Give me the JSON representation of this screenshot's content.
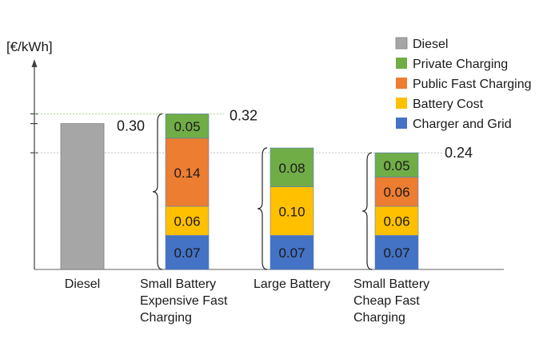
{
  "chart_data": {
    "type": "bar",
    "stacked": true,
    "ylabel": "[€/kWh]",
    "ylim": [
      0,
      0.36
    ],
    "grid": false,
    "legend_position": "top-right",
    "categories": [
      [
        "Diesel"
      ],
      [
        "Small Battery",
        "Expensive Fast",
        "Charging"
      ],
      [
        "Large Battery"
      ],
      [
        "Small Battery",
        "Cheap Fast",
        "Charging"
      ]
    ],
    "series": [
      {
        "name": "Diesel",
        "color": "#a6a6a6",
        "values": [
          0.3,
          0,
          0,
          0
        ]
      },
      {
        "name": "Private Charging",
        "color": "#70ad47",
        "values": [
          0,
          0.05,
          0.08,
          0.05
        ]
      },
      {
        "name": "Public Fast Charging",
        "color": "#ed7d31",
        "values": [
          0,
          0.14,
          0,
          0.06
        ]
      },
      {
        "name": "Battery Cost",
        "color": "#ffc000",
        "values": [
          0,
          0.06,
          0.1,
          0.06
        ]
      },
      {
        "name": "Charger and Grid",
        "color": "#4472c4",
        "values": [
          0,
          0.07,
          0.07,
          0.07
        ]
      }
    ],
    "stack_order": [
      "Charger and Grid",
      "Battery Cost",
      "Public Fast Charging",
      "Private Charging"
    ],
    "segment_labels": [
      [],
      [
        "0.05",
        "0.14",
        "0.06",
        "0.07"
      ],
      [
        "0.08",
        "0.10",
        "0.07"
      ],
      [
        "0.05",
        "0.06",
        "0.06",
        "0.07"
      ]
    ],
    "reference_lines": [
      {
        "value": 0.32,
        "label": "0.32"
      },
      {
        "value": 0.3,
        "label": "0.30"
      },
      {
        "value": 0.24,
        "label": "0.24"
      }
    ]
  }
}
